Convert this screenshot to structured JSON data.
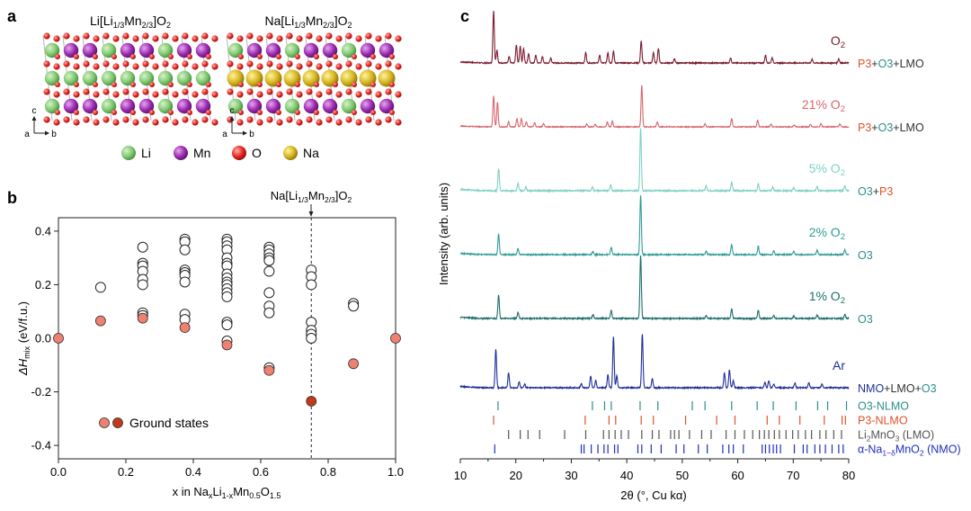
{
  "panel_a": {
    "letter": "a",
    "left_title": {
      "pre": "Li[Li",
      "s1": "1/3",
      "mid": "Mn",
      "s2": "2/3",
      "post": "]O",
      "s3": "2"
    },
    "right_title": {
      "pre": "Na[Li",
      "s1": "1/3",
      "mid": "Mn",
      "s2": "2/3",
      "post": "]O",
      "s3": "2"
    },
    "axes": {
      "c": "c",
      "a": "a",
      "b": "b"
    },
    "legend": [
      {
        "label": "Li",
        "color": "#7fc86f"
      },
      {
        "label": "Mn",
        "color": "#9b2bb0"
      },
      {
        "label": "O",
        "color": "#e52420"
      },
      {
        "label": "Na",
        "color": "#c9a816"
      }
    ]
  },
  "panel_b": {
    "letter": "b",
    "annotation": {
      "pre": "Na[Li",
      "s1": "1/3",
      "mid": "Mn",
      "s2": "2/3",
      "post": "]O",
      "s3": "2"
    },
    "ylabel": {
      "pre": "ΔH",
      "sub": "mix",
      "post": " (eV/f.u.)"
    },
    "xlabel": {
      "pre": "x in Na",
      "s1": "x",
      "m1": "Li",
      "s2": "1-x",
      "m2": "Mn",
      "s3": "0.5",
      "m3": "O",
      "s4": "1.5"
    },
    "legend_label": "Ground states"
  },
  "panel_c": {
    "letter": "c",
    "ylabel": "Intensity (arb. units)",
    "xlabel": "2θ (°, Cu kα)",
    "traces": [
      {
        "condition": {
          "pre": "O",
          "sub": "2"
        },
        "phase": [
          {
            "t": "P3",
            "c": "#e0522a"
          },
          {
            "t": "+",
            "c": "#333"
          },
          {
            "t": "O3",
            "c": "#2a8e8a"
          },
          {
            "t": "+LMO",
            "c": "#333"
          }
        ],
        "color": "#7c1a2e"
      },
      {
        "condition": {
          "pre": "21% O",
          "sub": "2"
        },
        "phase": [
          {
            "t": "P3",
            "c": "#e0522a"
          },
          {
            "t": "+",
            "c": "#333"
          },
          {
            "t": "O3",
            "c": "#2a8e8a"
          },
          {
            "t": "+LMO",
            "c": "#333"
          }
        ],
        "color": "#d9656b"
      },
      {
        "condition": {
          "pre": "5% O",
          "sub": "2"
        },
        "phase": [
          {
            "t": "O3",
            "c": "#2a8e8a"
          },
          {
            "t": "+",
            "c": "#333"
          },
          {
            "t": "P3",
            "c": "#e0522a"
          }
        ],
        "color": "#7fd0c6"
      },
      {
        "condition": {
          "pre": "2% O",
          "sub": "2"
        },
        "phase": [
          {
            "t": "O3",
            "c": "#2a8e8a"
          }
        ],
        "color": "#2f9c96"
      },
      {
        "condition": {
          "pre": "1% O",
          "sub": "2"
        },
        "phase": [
          {
            "t": "O3",
            "c": "#2a8e8a"
          }
        ],
        "color": "#1e6f6a"
      },
      {
        "condition": {
          "pre": "Ar",
          "sub": ""
        },
        "phase": [
          {
            "t": "NMO",
            "c": "#1e2f9a"
          },
          {
            "t": "+LMO+",
            "c": "#333"
          },
          {
            "t": "O3",
            "c": "#2a8e8a"
          }
        ],
        "color": "#1e2f9a"
      }
    ],
    "reference_labels": [
      {
        "pre": "O3-NLMO",
        "sub": "",
        "post": "",
        "color": "#2a8e8a"
      },
      {
        "pre": "P3-NLMO",
        "sub": "",
        "post": "",
        "color": "#e0522a"
      },
      {
        "pre": "Li",
        "sub": "2",
        "post": "MnO",
        "sub2": "3",
        "post2": " (LMO)",
        "color": "#555555"
      },
      {
        "pre": "α-Na",
        "sub": "1−δ",
        "post": "MnO",
        "sub2": "2",
        "post2": " (NMO)",
        "color": "#1e2fc0"
      }
    ]
  },
  "chart_data": [
    {
      "type": "scatter",
      "title": "",
      "xlabel": "x in NaxLi1-xMn0.5O1.5",
      "ylabel": "ΔHmix (eV/f.u.)",
      "xlim": [
        0,
        1
      ],
      "ylim": [
        -0.45,
        0.45
      ],
      "xticks": [
        0.0,
        0.2,
        0.4,
        0.6,
        0.8,
        1.0
      ],
      "yticks": [
        -0.4,
        -0.2,
        0.0,
        0.2,
        0.4
      ],
      "vline_x": 0.75,
      "series": [
        {
          "name": "",
          "style": "open",
          "points": [
            [
              0.125,
              0.19
            ],
            [
              0.25,
              0.34
            ],
            [
              0.25,
              0.28
            ],
            [
              0.25,
              0.27
            ],
            [
              0.25,
              0.25
            ],
            [
              0.25,
              0.22
            ],
            [
              0.25,
              0.2
            ],
            [
              0.25,
              0.095
            ],
            [
              0.25,
              0.085
            ],
            [
              0.375,
              0.37
            ],
            [
              0.375,
              0.36
            ],
            [
              0.375,
              0.33
            ],
            [
              0.375,
              0.255
            ],
            [
              0.375,
              0.245
            ],
            [
              0.375,
              0.235
            ],
            [
              0.375,
              0.21
            ],
            [
              0.375,
              0.09
            ],
            [
              0.375,
              0.07
            ],
            [
              0.5,
              0.37
            ],
            [
              0.5,
              0.36
            ],
            [
              0.5,
              0.345
            ],
            [
              0.5,
              0.33
            ],
            [
              0.5,
              0.3
            ],
            [
              0.5,
              0.28
            ],
            [
              0.5,
              0.27
            ],
            [
              0.5,
              0.24
            ],
            [
              0.5,
              0.225
            ],
            [
              0.5,
              0.21
            ],
            [
              0.5,
              0.2
            ],
            [
              0.5,
              0.185
            ],
            [
              0.5,
              0.17
            ],
            [
              0.5,
              0.155
            ],
            [
              0.5,
              0.06
            ],
            [
              0.5,
              0.05
            ],
            [
              0.5,
              -0.01
            ],
            [
              0.625,
              0.34
            ],
            [
              0.625,
              0.33
            ],
            [
              0.625,
              0.315
            ],
            [
              0.625,
              0.3
            ],
            [
              0.625,
              0.29
            ],
            [
              0.625,
              0.25
            ],
            [
              0.625,
              0.17
            ],
            [
              0.625,
              0.12
            ],
            [
              0.625,
              0.095
            ],
            [
              0.625,
              -0.11
            ],
            [
              0.75,
              0.255
            ],
            [
              0.75,
              0.23
            ],
            [
              0.75,
              0.2
            ],
            [
              0.75,
              0.06
            ],
            [
              0.75,
              0.03
            ],
            [
              0.75,
              0.015
            ],
            [
              0.75,
              0.0
            ],
            [
              0.875,
              0.13
            ],
            [
              0.875,
              0.12
            ]
          ]
        },
        {
          "name": "Ground states",
          "style": "filled",
          "points": [
            [
              0.0,
              0.0
            ],
            [
              0.125,
              0.065
            ],
            [
              0.25,
              0.075
            ],
            [
              0.375,
              0.04
            ],
            [
              0.5,
              -0.025
            ],
            [
              0.625,
              -0.12
            ],
            [
              0.75,
              -0.235
            ],
            [
              0.875,
              -0.095
            ],
            [
              1.0,
              0.0
            ]
          ]
        }
      ]
    },
    {
      "type": "line",
      "title": "",
      "xlabel": "2θ (°, Cu kα)",
      "ylabel": "Intensity (arb. units)",
      "xlim": [
        10,
        80
      ],
      "xticks": [
        10,
        20,
        30,
        40,
        50,
        60,
        70,
        80
      ],
      "series": [
        {
          "name": "O2",
          "peaks": [
            [
              16.0,
              1.0
            ],
            [
              16.6,
              0.25
            ],
            [
              18.8,
              0.12
            ],
            [
              20.1,
              0.35
            ],
            [
              20.8,
              0.32
            ],
            [
              21.4,
              0.28
            ],
            [
              22.3,
              0.18
            ],
            [
              23.6,
              0.15
            ],
            [
              24.8,
              0.12
            ],
            [
              26.3,
              0.1
            ],
            [
              32.6,
              0.2
            ],
            [
              35.1,
              0.15
            ],
            [
              36.6,
              0.2
            ],
            [
              37.6,
              0.22
            ],
            [
              42.6,
              0.42
            ],
            [
              44.8,
              0.2
            ],
            [
              45.7,
              0.28
            ],
            [
              48.6,
              0.08
            ],
            [
              58.7,
              0.1
            ],
            [
              65.0,
              0.15
            ],
            [
              66.2,
              0.1
            ],
            [
              73.4,
              0.07
            ],
            [
              78.2,
              0.08
            ]
          ]
        },
        {
          "name": "21% O2",
          "peaks": [
            [
              16.0,
              0.75
            ],
            [
              16.7,
              0.6
            ],
            [
              18.7,
              0.12
            ],
            [
              20.2,
              0.2
            ],
            [
              21.0,
              0.2
            ],
            [
              21.9,
              0.12
            ],
            [
              23.4,
              0.1
            ],
            [
              25.0,
              0.08
            ],
            [
              32.8,
              0.07
            ],
            [
              34.3,
              0.06
            ],
            [
              36.5,
              0.12
            ],
            [
              37.4,
              0.14
            ],
            [
              42.7,
              1.0
            ],
            [
              45.5,
              0.12
            ],
            [
              54.1,
              0.07
            ],
            [
              58.9,
              0.2
            ],
            [
              63.6,
              0.16
            ],
            [
              66.0,
              0.07
            ],
            [
              70.2,
              0.05
            ],
            [
              73.1,
              0.06
            ],
            [
              75.0,
              0.08
            ],
            [
              78.4,
              0.07
            ]
          ]
        },
        {
          "name": "5% O2",
          "peaks": [
            [
              16.9,
              0.35
            ],
            [
              20.4,
              0.12
            ],
            [
              21.8,
              0.06
            ],
            [
              33.8,
              0.06
            ],
            [
              37.1,
              0.1
            ],
            [
              42.5,
              1.0
            ],
            [
              54.3,
              0.08
            ],
            [
              58.9,
              0.14
            ],
            [
              63.7,
              0.12
            ],
            [
              66.3,
              0.06
            ],
            [
              70.1,
              0.05
            ],
            [
              74.3,
              0.06
            ],
            [
              79.3,
              0.08
            ]
          ]
        },
        {
          "name": "2% O2",
          "peaks": [
            [
              16.9,
              0.35
            ],
            [
              20.4,
              0.1
            ],
            [
              33.9,
              0.05
            ],
            [
              37.2,
              0.12
            ],
            [
              42.5,
              1.0
            ],
            [
              54.3,
              0.06
            ],
            [
              58.9,
              0.17
            ],
            [
              63.7,
              0.14
            ],
            [
              66.5,
              0.06
            ],
            [
              70.1,
              0.05
            ],
            [
              74.3,
              0.07
            ],
            [
              79.3,
              0.08
            ]
          ]
        },
        {
          "name": "1% O2",
          "peaks": [
            [
              16.9,
              0.38
            ],
            [
              20.4,
              0.1
            ],
            [
              33.9,
              0.06
            ],
            [
              37.2,
              0.13
            ],
            [
              42.5,
              1.0
            ],
            [
              54.3,
              0.05
            ],
            [
              58.9,
              0.15
            ],
            [
              63.7,
              0.13
            ],
            [
              66.5,
              0.05
            ],
            [
              70.1,
              0.04
            ],
            [
              74.3,
              0.06
            ],
            [
              79.3,
              0.06
            ]
          ]
        },
        {
          "name": "Ar",
          "peaks": [
            [
              16.4,
              0.65
            ],
            [
              18.7,
              0.25
            ],
            [
              20.6,
              0.1
            ],
            [
              21.6,
              0.06
            ],
            [
              31.8,
              0.07
            ],
            [
              33.5,
              0.2
            ],
            [
              34.4,
              0.12
            ],
            [
              36.6,
              0.22
            ],
            [
              37.6,
              0.85
            ],
            [
              38.2,
              0.2
            ],
            [
              42.8,
              0.9
            ],
            [
              44.6,
              0.15
            ],
            [
              57.6,
              0.25
            ],
            [
              58.5,
              0.3
            ],
            [
              59.2,
              0.12
            ],
            [
              64.9,
              0.1
            ],
            [
              65.6,
              0.12
            ],
            [
              66.5,
              0.06
            ],
            [
              70.3,
              0.08
            ],
            [
              72.8,
              0.08
            ],
            [
              75.2,
              0.06
            ]
          ]
        }
      ],
      "reference_ticks": [
        {
          "name": "O3-NLMO",
          "positions": [
            16.8,
            33.8,
            36.0,
            37.2,
            42.4,
            45.6,
            51.8,
            54.1,
            58.9,
            63.5,
            66.4,
            70.5,
            74.4,
            76.2,
            79.6
          ]
        },
        {
          "name": "P3-NLMO",
          "positions": [
            16.0,
            32.5,
            36.8,
            38.0,
            42.6,
            44.8,
            50.6,
            56.2,
            59.5,
            65.3,
            67.5,
            71.2,
            75.6,
            78.8,
            79.4
          ]
        },
        {
          "name": "Li2MnO3 (LMO)",
          "positions": [
            18.7,
            20.8,
            22.2,
            24.3,
            28.8,
            32.6,
            35.8,
            36.8,
            37.9,
            39.0,
            40.3,
            42.7,
            44.6,
            45.8,
            47.9,
            48.6,
            49.4,
            51.3,
            53.5,
            55.2,
            57.9,
            59.5,
            61.2,
            62.7,
            63.9,
            64.8,
            65.6,
            66.6,
            67.5,
            68.7,
            69.9,
            70.9,
            72.2,
            73.3,
            74.8,
            75.9,
            77.3,
            78.7
          ]
        },
        {
          "name": "α-Na1−δMnO2 (NMO)",
          "positions": [
            16.2,
            31.8,
            32.3,
            33.6,
            34.8,
            35.9,
            36.6,
            37.8,
            38.4,
            42.0,
            42.7,
            44.4,
            46.2,
            48.9,
            50.3,
            52.9,
            54.5,
            57.3,
            58.4,
            59.2,
            61.0,
            64.4,
            65.0,
            65.7,
            66.4,
            67.0,
            67.7,
            70.2,
            71.8,
            72.5,
            73.9,
            74.8,
            75.8,
            77.0,
            78.2,
            79.0
          ]
        }
      ]
    }
  ]
}
